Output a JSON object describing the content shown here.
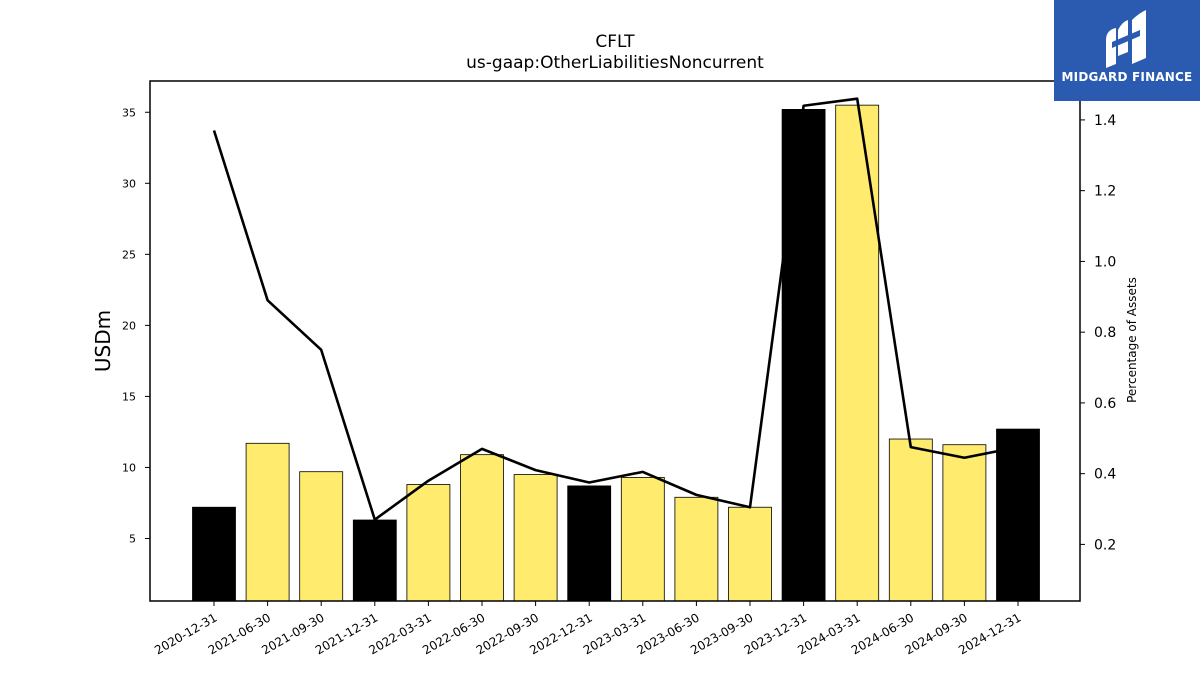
{
  "chart_data": {
    "type": "bar",
    "title": "CFLT",
    "subtitle": "us-gaap:OtherLiabilitiesNoncurrent",
    "ylabel": "USDm",
    "y2label": "Percentage of Assets",
    "ylim": [
      0.6,
      37.2
    ],
    "y2lim": [
      0.04,
      1.51
    ],
    "yticks": [
      5,
      10,
      15,
      20,
      25,
      30,
      35
    ],
    "y2ticks": [
      0.2,
      0.4,
      0.6,
      0.8,
      1.0,
      1.2,
      1.4
    ],
    "categories": [
      "2020-12-31",
      "2021-06-30",
      "2021-09-30",
      "2021-12-31",
      "2022-03-31",
      "2022-06-30",
      "2022-09-30",
      "2022-12-31",
      "2023-03-31",
      "2023-06-30",
      "2023-09-30",
      "2023-12-31",
      "2024-03-31",
      "2024-06-30",
      "2024-09-30",
      "2024-12-31"
    ],
    "series": [
      {
        "type": "bar",
        "values": [
          7.2,
          11.7,
          9.7,
          6.3,
          8.8,
          10.9,
          9.5,
          8.7,
          9.3,
          7.9,
          7.2,
          35.2,
          35.5,
          12.0,
          11.6,
          12.7
        ],
        "colors": [
          "#000000",
          "#ffeb6e",
          "#ffeb6e",
          "#000000",
          "#ffeb6e",
          "#ffeb6e",
          "#ffeb6e",
          "#000000",
          "#ffeb6e",
          "#ffeb6e",
          "#ffeb6e",
          "#000000",
          "#ffeb6e",
          "#ffeb6e",
          "#ffeb6e",
          "#000000"
        ]
      },
      {
        "type": "line",
        "axis": "right",
        "color": "#000000",
        "values": [
          1.37,
          0.89,
          0.75,
          0.27,
          0.38,
          0.47,
          0.41,
          0.375,
          0.405,
          0.34,
          0.305,
          1.44,
          1.46,
          0.475,
          0.445,
          0.475
        ]
      }
    ]
  },
  "logo": {
    "text": "MIDGARD FINANCE",
    "background": "#2a5bb0"
  }
}
